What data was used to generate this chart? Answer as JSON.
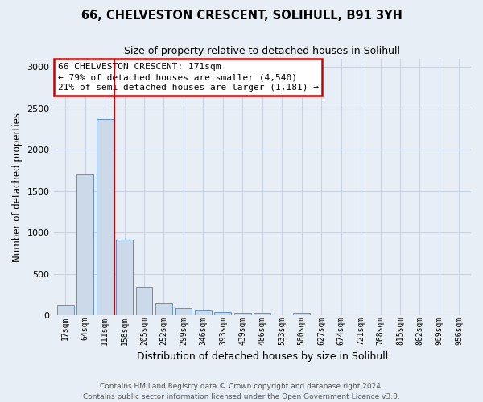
{
  "title": "66, CHELVESTON CRESCENT, SOLIHULL, B91 3YH",
  "subtitle": "Size of property relative to detached houses in Solihull",
  "xlabel": "Distribution of detached houses by size in Solihull",
  "ylabel": "Number of detached properties",
  "footer_line1": "Contains HM Land Registry data © Crown copyright and database right 2024.",
  "footer_line2": "Contains public sector information licensed under the Open Government Licence v3.0.",
  "bin_labels": [
    "17sqm",
    "64sqm",
    "111sqm",
    "158sqm",
    "205sqm",
    "252sqm",
    "299sqm",
    "346sqm",
    "393sqm",
    "439sqm",
    "486sqm",
    "533sqm",
    "580sqm",
    "627sqm",
    "674sqm",
    "721sqm",
    "768sqm",
    "815sqm",
    "862sqm",
    "909sqm",
    "956sqm"
  ],
  "bar_values": [
    130,
    1700,
    2370,
    910,
    340,
    150,
    90,
    55,
    40,
    30,
    25,
    0,
    25,
    0,
    0,
    0,
    0,
    0,
    0,
    0,
    0
  ],
  "bar_color": "#ccd9e8",
  "bar_edge_color": "#6090c8",
  "annotation_text": "66 CHELVESTON CRESCENT: 171sqm\n← 79% of detached houses are smaller (4,540)\n21% of semi-detached houses are larger (1,181) →",
  "annotation_box_facecolor": "white",
  "annotation_box_edgecolor": "#cc0000",
  "vline_x": 2.5,
  "vline_color": "#cc0000",
  "ylim": [
    0,
    3100
  ],
  "yticks": [
    0,
    500,
    1000,
    1500,
    2000,
    2500,
    3000
  ],
  "grid_color": "#c8d4e4",
  "bg_color": "#e8eef6",
  "title_fontsize": 10.5,
  "subtitle_fontsize": 9,
  "annotation_fontsize": 8,
  "axis_label_fontsize": 8.5,
  "tick_fontsize": 7,
  "xlabel_fontsize": 9,
  "footer_fontsize": 6.5
}
